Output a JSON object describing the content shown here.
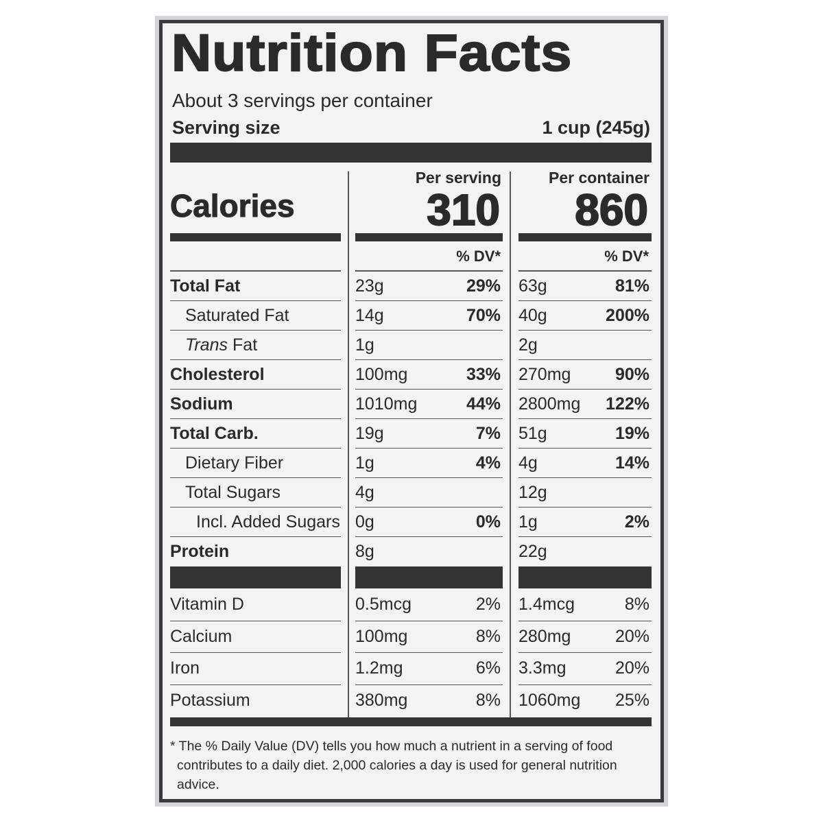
{
  "title": "Nutrition Facts",
  "servings": "About 3 servings per container",
  "serving_size": {
    "label": "Serving size",
    "value": "1 cup (245g)"
  },
  "calories": {
    "label": "Calories",
    "per_serving": {
      "heading": "Per serving",
      "value": "310"
    },
    "per_container": {
      "heading": "Per container",
      "value": "860"
    }
  },
  "dv_header": {
    "per_serving": "% DV*",
    "per_container": "% DV*"
  },
  "nutrients": [
    {
      "name": "Total Fat",
      "serving": {
        "amount": "23g",
        "dv": "29%"
      },
      "container": {
        "amount": "63g",
        "dv": "81%"
      }
    },
    {
      "name": "Saturated Fat",
      "serving": {
        "amount": "14g",
        "dv": "70%"
      },
      "container": {
        "amount": "40g",
        "dv": "200%"
      }
    },
    {
      "name_italic": "Trans",
      "name": "Fat",
      "serving": {
        "amount": "1g"
      },
      "container": {
        "amount": "2g"
      }
    },
    {
      "name": "Cholesterol",
      "serving": {
        "amount": "100mg",
        "dv": "33%"
      },
      "container": {
        "amount": "270mg",
        "dv": "90%"
      }
    },
    {
      "name": "Sodium",
      "serving": {
        "amount": "1010mg",
        "dv": "44%"
      },
      "container": {
        "amount": "2800mg",
        "dv": "122%"
      }
    },
    {
      "name": "Total Carb.",
      "serving": {
        "amount": "19g",
        "dv": "7%"
      },
      "container": {
        "amount": "51g",
        "dv": "19%"
      }
    },
    {
      "name": "Dietary Fiber",
      "serving": {
        "amount": "1g",
        "dv": "4%"
      },
      "container": {
        "amount": "4g",
        "dv": "14%"
      }
    },
    {
      "name": "Total Sugars",
      "serving": {
        "amount": "4g"
      },
      "container": {
        "amount": "12g"
      }
    },
    {
      "name": "Incl. Added Sugars",
      "serving": {
        "amount": "0g",
        "dv": "0%"
      },
      "container": {
        "amount": "1g",
        "dv": "2%"
      }
    },
    {
      "name": "Protein",
      "serving": {
        "amount": "8g"
      },
      "container": {
        "amount": "22g"
      }
    }
  ],
  "vitamins": [
    {
      "name": "Vitamin D",
      "serving": {
        "amount": "0.5mcg",
        "dv": "2%"
      },
      "container": {
        "amount": "1.4mcg",
        "dv": "8%"
      }
    },
    {
      "name": "Calcium",
      "serving": {
        "amount": "100mg",
        "dv": "8%"
      },
      "container": {
        "amount": "280mg",
        "dv": "20%"
      }
    },
    {
      "name": "Iron",
      "serving": {
        "amount": "1.2mg",
        "dv": "6%"
      },
      "container": {
        "amount": "3.3mg",
        "dv": "20%"
      }
    },
    {
      "name": "Potassium",
      "serving": {
        "amount": "380mg",
        "dv": "8%"
      },
      "container": {
        "amount": "1060mg",
        "dv": "25%"
      }
    }
  ],
  "footnote": "* The % Daily Value (DV) tells you how much a nutrient in a serving of food contributes to a daily diet. 2,000 calories a day is used for general nutrition advice."
}
